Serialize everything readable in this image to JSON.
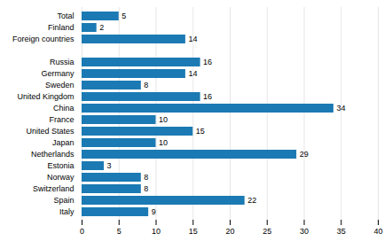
{
  "chart_data": {
    "type": "bar",
    "orientation": "horizontal",
    "categories": [
      "Italy",
      "Spain",
      "Switzerland",
      "Norway",
      "Estonia",
      "Netherlands",
      "Japan",
      "United States",
      "France",
      "China",
      "United Kingdom",
      "Sweden",
      "Germany",
      "Russia",
      null,
      "Foreign countries",
      "Finland",
      "Total"
    ],
    "values": [
      9,
      22,
      8,
      8,
      3,
      29,
      10,
      15,
      10,
      34,
      16,
      8,
      14,
      16,
      0,
      14,
      2,
      5
    ],
    "color": "#1b7ab3",
    "xlim": [
      0,
      40
    ],
    "xticks": [
      0,
      5,
      10,
      15,
      20,
      25,
      30,
      35,
      40
    ],
    "grid": true,
    "data_labels": true
  }
}
